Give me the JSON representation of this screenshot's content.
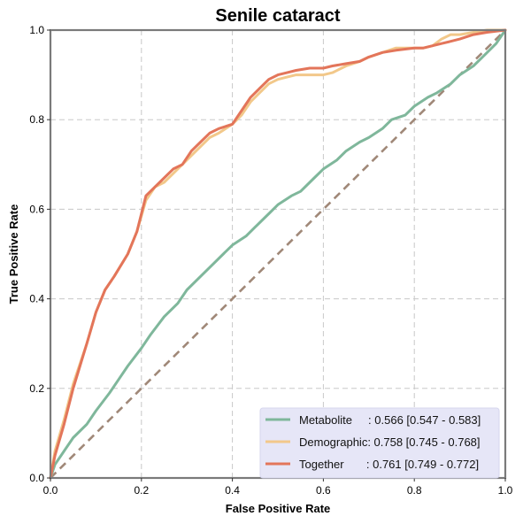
{
  "chart_data": {
    "type": "line",
    "title": "Senile cataract",
    "xlabel": "False Positive Rate",
    "ylabel": "True Positive Rate",
    "xlim": [
      0,
      1
    ],
    "ylim": [
      0,
      1
    ],
    "xticks": [
      "0.0",
      "0.2",
      "0.4",
      "0.6",
      "0.8",
      "1.0"
    ],
    "yticks": [
      "0.0",
      "0.2",
      "0.4",
      "0.6",
      "0.8",
      "1.0"
    ],
    "grid": true,
    "legend_position": "bottom-right",
    "diagonal_color": "#a08878",
    "series": [
      {
        "name": "Metabolite",
        "legend_label": "Metabolite     : 0.566 [0.547 - 0.583]",
        "color": "#7fb79b",
        "x": [
          0,
          0.01,
          0.03,
          0.05,
          0.08,
          0.1,
          0.13,
          0.15,
          0.17,
          0.2,
          0.22,
          0.25,
          0.28,
          0.3,
          0.33,
          0.35,
          0.38,
          0.4,
          0.43,
          0.45,
          0.48,
          0.5,
          0.53,
          0.55,
          0.58,
          0.6,
          0.63,
          0.65,
          0.68,
          0.7,
          0.73,
          0.75,
          0.78,
          0.8,
          0.83,
          0.85,
          0.88,
          0.9,
          0.93,
          0.95,
          0.98,
          1.0
        ],
        "y": [
          0,
          0.03,
          0.06,
          0.09,
          0.12,
          0.15,
          0.19,
          0.22,
          0.25,
          0.29,
          0.32,
          0.36,
          0.39,
          0.42,
          0.45,
          0.47,
          0.5,
          0.52,
          0.54,
          0.56,
          0.59,
          0.61,
          0.63,
          0.64,
          0.67,
          0.69,
          0.71,
          0.73,
          0.75,
          0.76,
          0.78,
          0.8,
          0.81,
          0.83,
          0.85,
          0.86,
          0.88,
          0.9,
          0.92,
          0.94,
          0.97,
          1.0
        ]
      },
      {
        "name": "Demographic",
        "legend_label": "Demographic: 0.758 [0.745 - 0.768]",
        "color": "#f2c88a",
        "x": [
          0,
          0.01,
          0.03,
          0.05,
          0.08,
          0.1,
          0.12,
          0.14,
          0.17,
          0.19,
          0.21,
          0.23,
          0.25,
          0.27,
          0.29,
          0.31,
          0.33,
          0.35,
          0.37,
          0.4,
          0.42,
          0.44,
          0.46,
          0.48,
          0.5,
          0.52,
          0.54,
          0.57,
          0.6,
          0.62,
          0.65,
          0.68,
          0.7,
          0.73,
          0.76,
          0.8,
          0.82,
          0.84,
          0.86,
          0.88,
          0.9,
          0.93,
          0.96,
          1.0
        ],
        "y": [
          0,
          0.06,
          0.13,
          0.21,
          0.3,
          0.37,
          0.42,
          0.45,
          0.5,
          0.55,
          0.62,
          0.65,
          0.66,
          0.68,
          0.7,
          0.72,
          0.74,
          0.76,
          0.77,
          0.79,
          0.81,
          0.84,
          0.86,
          0.88,
          0.89,
          0.895,
          0.9,
          0.9,
          0.9,
          0.905,
          0.92,
          0.93,
          0.94,
          0.95,
          0.96,
          0.96,
          0.96,
          0.965,
          0.98,
          0.99,
          0.99,
          0.995,
          1.0,
          1.0
        ]
      },
      {
        "name": "Together",
        "legend_label": "Together       : 0.761 [0.749 - 0.772]",
        "color": "#e3755a",
        "x": [
          0,
          0.01,
          0.03,
          0.05,
          0.08,
          0.1,
          0.12,
          0.14,
          0.17,
          0.19,
          0.21,
          0.23,
          0.25,
          0.27,
          0.29,
          0.31,
          0.33,
          0.35,
          0.37,
          0.4,
          0.42,
          0.44,
          0.46,
          0.48,
          0.5,
          0.52,
          0.54,
          0.57,
          0.6,
          0.62,
          0.65,
          0.68,
          0.7,
          0.73,
          0.76,
          0.8,
          0.82,
          0.84,
          0.86,
          0.88,
          0.9,
          0.93,
          0.96,
          1.0
        ],
        "y": [
          0,
          0.05,
          0.12,
          0.2,
          0.3,
          0.37,
          0.42,
          0.45,
          0.5,
          0.55,
          0.63,
          0.65,
          0.67,
          0.69,
          0.7,
          0.73,
          0.75,
          0.77,
          0.78,
          0.79,
          0.82,
          0.85,
          0.87,
          0.89,
          0.9,
          0.905,
          0.91,
          0.915,
          0.915,
          0.92,
          0.925,
          0.93,
          0.94,
          0.95,
          0.955,
          0.96,
          0.96,
          0.965,
          0.97,
          0.975,
          0.98,
          0.99,
          0.995,
          1.0
        ]
      }
    ]
  }
}
